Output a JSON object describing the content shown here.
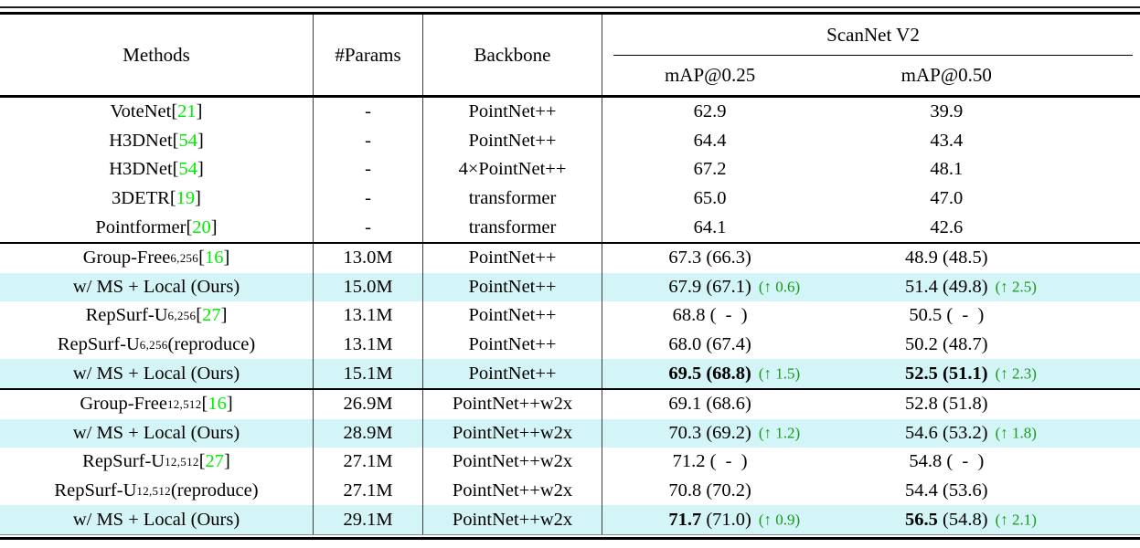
{
  "colors": {
    "highlight": "#d4f5f7",
    "citation_green": "#00ee00",
    "delta_green": "#189918",
    "rule_black": "#000000"
  },
  "table": {
    "header": {
      "methods": "Methods",
      "params": "#Params",
      "backbone": "Backbone",
      "group": "ScanNet V2",
      "sub_025": "mAP@0.25",
      "sub_050": "mAP@0.50"
    },
    "up_arrow": "↑",
    "rows": [
      {
        "method": {
          "text": "VoteNet",
          "sup": "",
          "cite": "21",
          "tail": ""
        },
        "params": "-",
        "backbone": "PointNet++",
        "map25": {
          "main": "62.9",
          "paren": "",
          "up": ""
        },
        "map50": {
          "main": "39.9",
          "paren": "",
          "up": ""
        },
        "highlight": false,
        "rule_before": false
      },
      {
        "method": {
          "text": "H3DNet",
          "sup": "",
          "cite": "54",
          "tail": ""
        },
        "params": "-",
        "backbone": "PointNet++",
        "map25": {
          "main": "64.4",
          "paren": "",
          "up": ""
        },
        "map50": {
          "main": "43.4",
          "paren": "",
          "up": ""
        },
        "highlight": false,
        "rule_before": false
      },
      {
        "method": {
          "text": "H3DNet",
          "sup": "",
          "cite": "54",
          "tail": ""
        },
        "params": "-",
        "backbone": "4×PointNet++",
        "map25": {
          "main": "67.2",
          "paren": "",
          "up": ""
        },
        "map50": {
          "main": "48.1",
          "paren": "",
          "up": ""
        },
        "highlight": false,
        "rule_before": false
      },
      {
        "method": {
          "text": "3DETR",
          "sup": "",
          "cite": "19",
          "tail": ""
        },
        "params": "-",
        "backbone": "transformer",
        "map25": {
          "main": "65.0",
          "paren": "",
          "up": ""
        },
        "map50": {
          "main": "47.0",
          "paren": "",
          "up": ""
        },
        "highlight": false,
        "rule_before": false
      },
      {
        "method": {
          "text": "Pointformer",
          "sup": "",
          "cite": "20",
          "tail": ""
        },
        "params": "-",
        "backbone": "transformer",
        "map25": {
          "main": "64.1",
          "paren": "",
          "up": ""
        },
        "map50": {
          "main": "42.6",
          "paren": "",
          "up": ""
        },
        "highlight": false,
        "rule_before": false
      },
      {
        "method": {
          "text": "Group-Free",
          "sup": "6,256",
          "cite": "16",
          "tail": ""
        },
        "params": "13.0M",
        "backbone": "PointNet++",
        "map25": {
          "main": "67.3",
          "paren": "(66.3)",
          "up": ""
        },
        "map50": {
          "main": "48.9",
          "paren": "(48.5)",
          "up": ""
        },
        "highlight": false,
        "rule_before": true
      },
      {
        "method": {
          "text": "w/ MS + Local (Ours)",
          "sup": "",
          "cite": "",
          "tail": ""
        },
        "params": "15.0M",
        "backbone": "PointNet++",
        "map25": {
          "main": "67.9",
          "paren": "(67.1)",
          "up": "0.6"
        },
        "map50": {
          "main": "51.4",
          "paren": "(49.8)",
          "up": "2.5"
        },
        "highlight": true,
        "rule_before": false
      },
      {
        "method": {
          "text": "RepSurf-U",
          "sup": "6,256",
          "cite": "27",
          "tail": ""
        },
        "params": "13.1M",
        "backbone": "PointNet++",
        "map25": {
          "main": "68.8",
          "paren": "(  -  )",
          "up": ""
        },
        "map50": {
          "main": "50.5",
          "paren": "(  -  )",
          "up": ""
        },
        "highlight": false,
        "rule_before": false
      },
      {
        "method": {
          "text": "RepSurf-U",
          "sup": "6,256",
          "cite": "",
          "tail": " (reproduce)"
        },
        "params": "13.1M",
        "backbone": "PointNet++",
        "map25": {
          "main": "68.0",
          "paren": "(67.4)",
          "up": ""
        },
        "map50": {
          "main": "50.2",
          "paren": "(48.7)",
          "up": ""
        },
        "highlight": false,
        "rule_before": false
      },
      {
        "method": {
          "text": "w/ MS + Local (Ours)",
          "sup": "",
          "cite": "",
          "tail": ""
        },
        "params": "15.1M",
        "backbone": "PointNet++",
        "map25": {
          "main": "69.5",
          "paren": "(68.8)",
          "up": "1.5",
          "bold_main": true,
          "bold_paren": true
        },
        "map50": {
          "main": "52.5",
          "paren": "(51.1)",
          "up": "2.3",
          "bold_main": true,
          "bold_paren": true
        },
        "highlight": true,
        "rule_before": false
      },
      {
        "method": {
          "text": "Group-Free",
          "sup": "12,512",
          "cite": "16",
          "tail": ""
        },
        "params": "26.9M",
        "backbone": "PointNet++w2x",
        "map25": {
          "main": "69.1",
          "paren": "(68.6)",
          "up": ""
        },
        "map50": {
          "main": "52.8",
          "paren": "(51.8)",
          "up": ""
        },
        "highlight": false,
        "rule_before": true
      },
      {
        "method": {
          "text": "w/ MS + Local (Ours)",
          "sup": "",
          "cite": "",
          "tail": ""
        },
        "params": "28.9M",
        "backbone": "PointNet++w2x",
        "map25": {
          "main": "70.3",
          "paren": "(69.2)",
          "up": "1.2"
        },
        "map50": {
          "main": "54.6",
          "paren": "(53.2)",
          "up": "1.8"
        },
        "highlight": true,
        "rule_before": false
      },
      {
        "method": {
          "text": "RepSurf-U",
          "sup": "12,512",
          "cite": "27",
          "tail": ""
        },
        "params": "27.1M",
        "backbone": "PointNet++w2x",
        "map25": {
          "main": "71.2",
          "paren": "(  -  )",
          "up": ""
        },
        "map50": {
          "main": "54.8",
          "paren": "(  -  )",
          "up": ""
        },
        "highlight": false,
        "rule_before": false
      },
      {
        "method": {
          "text": "RepSurf-U",
          "sup": "12,512",
          "cite": "",
          "tail": " (reproduce)"
        },
        "params": "27.1M",
        "backbone": "PointNet++w2x",
        "map25": {
          "main": "70.8",
          "paren": "(70.2)",
          "up": ""
        },
        "map50": {
          "main": "54.4",
          "paren": "(53.6)",
          "up": ""
        },
        "highlight": false,
        "rule_before": false
      },
      {
        "method": {
          "text": "w/ MS + Local (Ours)",
          "sup": "",
          "cite": "",
          "tail": ""
        },
        "params": "29.1M",
        "backbone": "PointNet++w2x",
        "map25": {
          "main": "71.7",
          "paren": "(71.0)",
          "up": "0.9",
          "bold_main": true,
          "bold_paren": false
        },
        "map50": {
          "main": "56.5",
          "paren": "(54.8)",
          "up": "2.1",
          "bold_main": true,
          "bold_paren": false
        },
        "highlight": true,
        "rule_before": false
      }
    ]
  }
}
